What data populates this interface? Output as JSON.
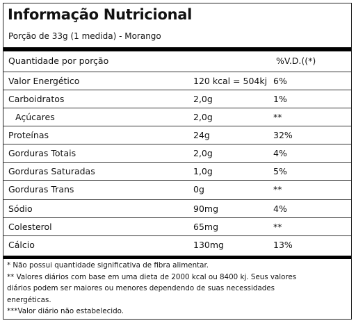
{
  "label": {
    "title": "Informação Nutricional",
    "serving": "Porção de 33g (1 medida) - Morango"
  },
  "table": {
    "header": {
      "quantity": "Quantidade por porção",
      "amount": "",
      "dv": "%V.D.((*)"
    },
    "rows": [
      {
        "name": "Valor Energético",
        "amount": "120 kcal = 504kj",
        "dv": "6%"
      },
      {
        "name": "Carboidratos",
        "amount": "2,0g",
        "dv": "1%"
      },
      {
        "name": "Açúcares",
        "amount": "2,0g",
        "dv": "**"
      },
      {
        "name": "Proteínas",
        "amount": "24g",
        "dv": "32%"
      },
      {
        "name": "Gorduras Totais",
        "amount": "2,0g",
        "dv": "4%"
      },
      {
        "name": "Gorduras Saturadas",
        "amount": "1,0g",
        "dv": "5%"
      },
      {
        "name": "Gorduras Trans",
        "amount": "0g",
        "dv": "**"
      },
      {
        "name": "Sódio",
        "amount": "90mg",
        "dv": "4%"
      },
      {
        "name": "Colesterol",
        "amount": "65mg",
        "dv": "**"
      },
      {
        "name": "Cálcio",
        "amount": "130mg",
        "dv": "13%"
      }
    ]
  },
  "footnotes": [
    "* Não possui quantidade significativa de fibra alimentar.",
    "** Valores diários com base em uma dieta de 2000 kcal ou 8400 kj. Seus valores",
    "diários podem ser maiores ou menores dependendo de suas necessidades",
    "energéticas.",
    "***Valor diário não estabelecido."
  ]
}
